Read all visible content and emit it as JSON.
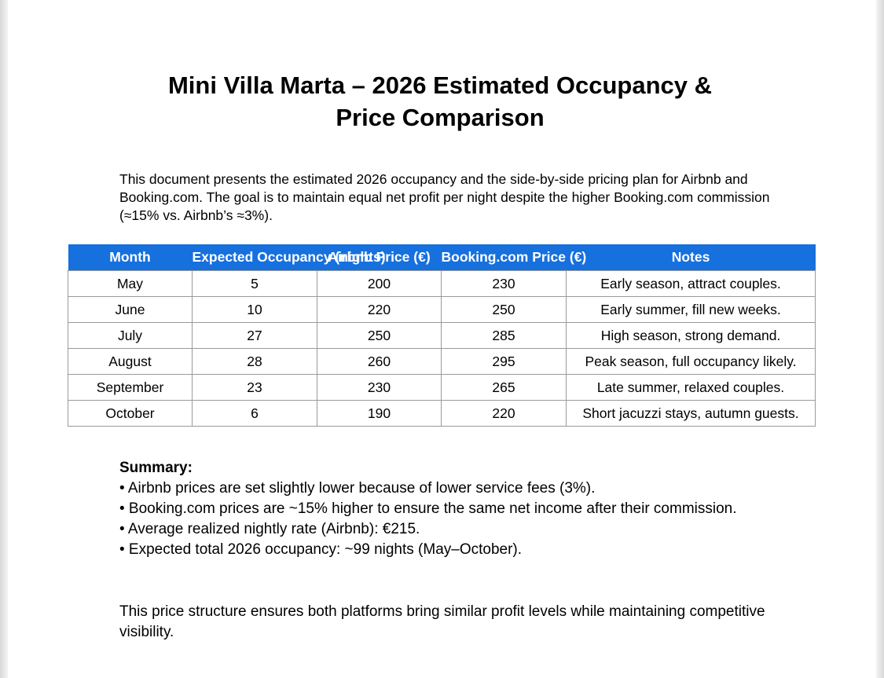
{
  "document": {
    "title_line1": "Mini Villa Marta – 2026 Estimated Occupancy &",
    "title_line2": "Price Comparison",
    "intro": "This document presents the estimated 2026 occupancy and the side-by-side pricing plan for Airbnb and Booking.com. The goal is to maintain equal net profit per night despite the higher Booking.com commission (≈15% vs. Airbnb’s ≈3%).",
    "table": {
      "headers": [
        "Month",
        "Expected Occupancy (nights)",
        "Airbnb Price (€)",
        "Booking.com Price (€)",
        "Notes"
      ],
      "rows": [
        [
          "May",
          "5",
          "200",
          "230",
          "Early season, attract couples."
        ],
        [
          "June",
          "10",
          "220",
          "250",
          "Early summer, fill new weeks."
        ],
        [
          "July",
          "27",
          "250",
          "285",
          "High season, strong demand."
        ],
        [
          "August",
          "28",
          "260",
          "295",
          "Peak season, full occupancy likely."
        ],
        [
          "September",
          "23",
          "230",
          "265",
          "Late summer, relaxed couples."
        ],
        [
          "October",
          "6",
          "190",
          "220",
          "Short jacuzzi stays, autumn guests."
        ]
      ]
    },
    "summary": {
      "heading": "Summary:",
      "bullets": [
        "• Airbnb prices are set slightly lower because of lower service fees (3%).",
        "• Booking.com prices are ~15% higher to ensure the same net income after their commission.",
        "• Average realized nightly rate (Airbnb): €215.",
        "• Expected total 2026 occupancy: ~99 nights (May–October)."
      ]
    },
    "closing": "This price structure ensures both platforms bring similar profit levels while maintaining competitive visibility."
  }
}
